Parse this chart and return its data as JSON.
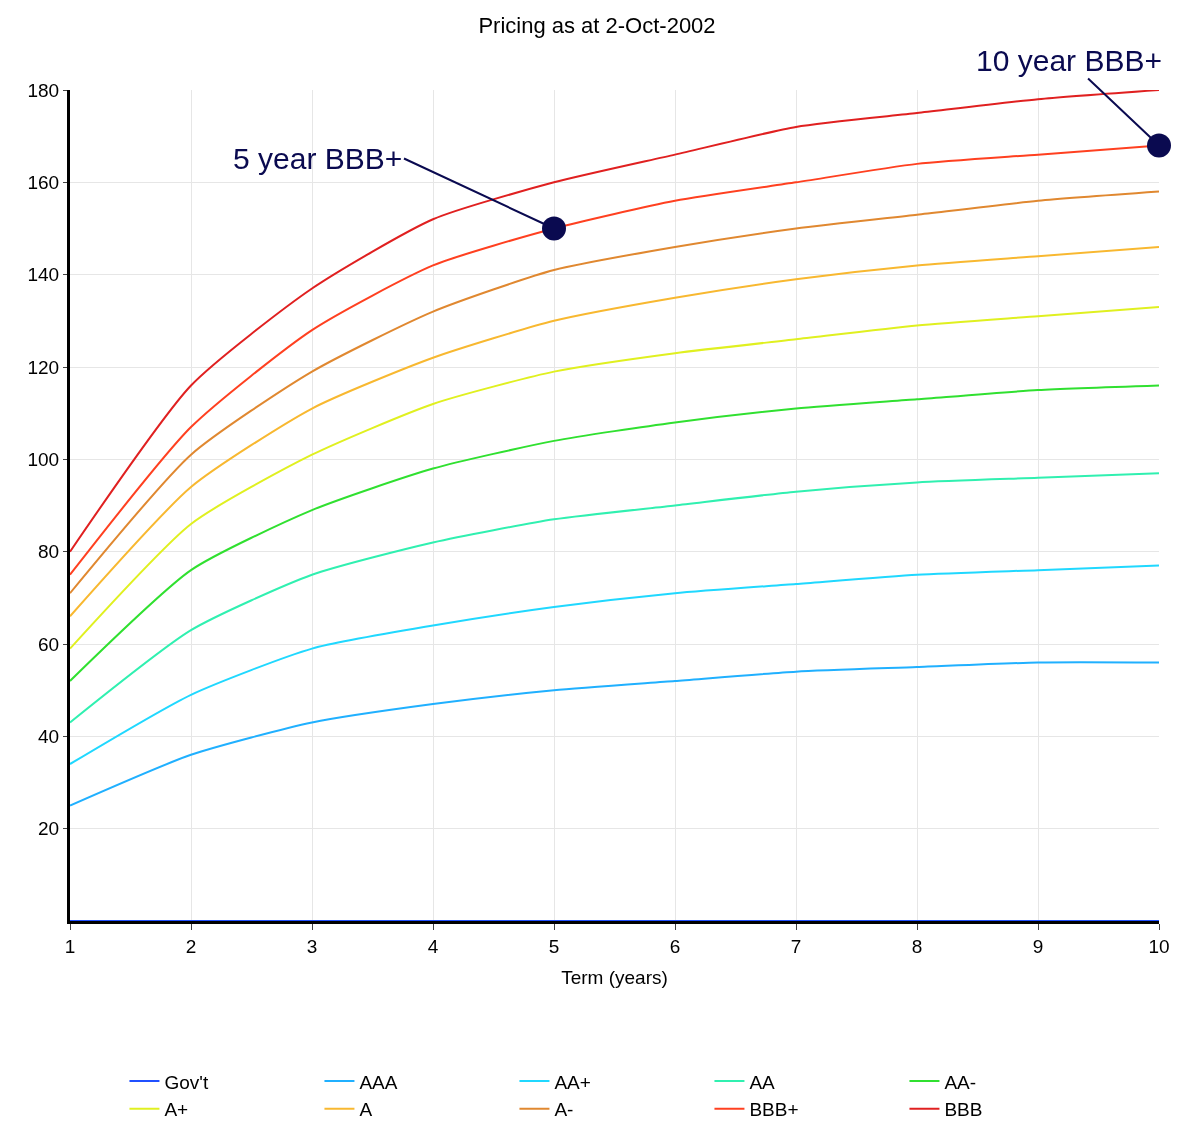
{
  "chart_data": {
    "type": "line",
    "title": "Pricing as at 2-Oct-2002",
    "xlabel": "Term (years)",
    "x": [
      1,
      2,
      3,
      4,
      5,
      6,
      7,
      8,
      9,
      10
    ],
    "series": [
      {
        "name": "Gov't",
        "color": "#2050ff",
        "values": [
          0,
          0,
          0,
          0,
          0,
          0,
          0,
          0,
          0,
          0
        ]
      },
      {
        "name": "AAA",
        "color": "#20b0ff",
        "values": [
          25,
          36,
          43,
          47,
          50,
          52,
          54,
          55,
          56,
          56
        ]
      },
      {
        "name": "AA+",
        "color": "#20d8ff",
        "values": [
          34,
          49,
          59,
          64,
          68,
          71,
          73,
          75,
          76,
          77
        ]
      },
      {
        "name": "AA",
        "color": "#30f0b0",
        "values": [
          43,
          63,
          75,
          82,
          87,
          90,
          93,
          95,
          96,
          97
        ]
      },
      {
        "name": "AA-",
        "color": "#30e030",
        "values": [
          52,
          76,
          89,
          98,
          104,
          108,
          111,
          113,
          115,
          116
        ]
      },
      {
        "name": "A+",
        "color": "#e0f020",
        "values": [
          59,
          86,
          101,
          112,
          119,
          123,
          126,
          129,
          131,
          133
        ]
      },
      {
        "name": "A",
        "color": "#f8b830",
        "values": [
          66,
          94,
          111,
          122,
          130,
          135,
          139,
          142,
          144,
          146
        ]
      },
      {
        "name": "A-",
        "color": "#e08830",
        "values": [
          71,
          101,
          119,
          132,
          141,
          146,
          150,
          153,
          156,
          158
        ]
      },
      {
        "name": "BBB+",
        "color": "#ff4020",
        "values": [
          75,
          107,
          128,
          142,
          150,
          156,
          160,
          164,
          166,
          168
        ]
      },
      {
        "name": "BBB",
        "color": "#e02020",
        "values": [
          80,
          116,
          137,
          152,
          160,
          166,
          172,
          175,
          178,
          180
        ]
      }
    ],
    "xlim": [
      1,
      10
    ],
    "xticks": [
      1,
      2,
      3,
      4,
      5,
      6,
      7,
      8,
      9,
      10
    ],
    "ylim": [
      0,
      180
    ],
    "yticks": [
      20,
      40,
      60,
      80,
      100,
      120,
      140,
      160,
      180
    ],
    "grid": true,
    "legend": "bottom",
    "marker": "none",
    "line_style": "solid",
    "annotations": [
      {
        "text": "5 year BBB+",
        "x": 5,
        "y": 150
      },
      {
        "text": "10 year BBB+",
        "x": 10,
        "y": 168
      }
    ]
  }
}
